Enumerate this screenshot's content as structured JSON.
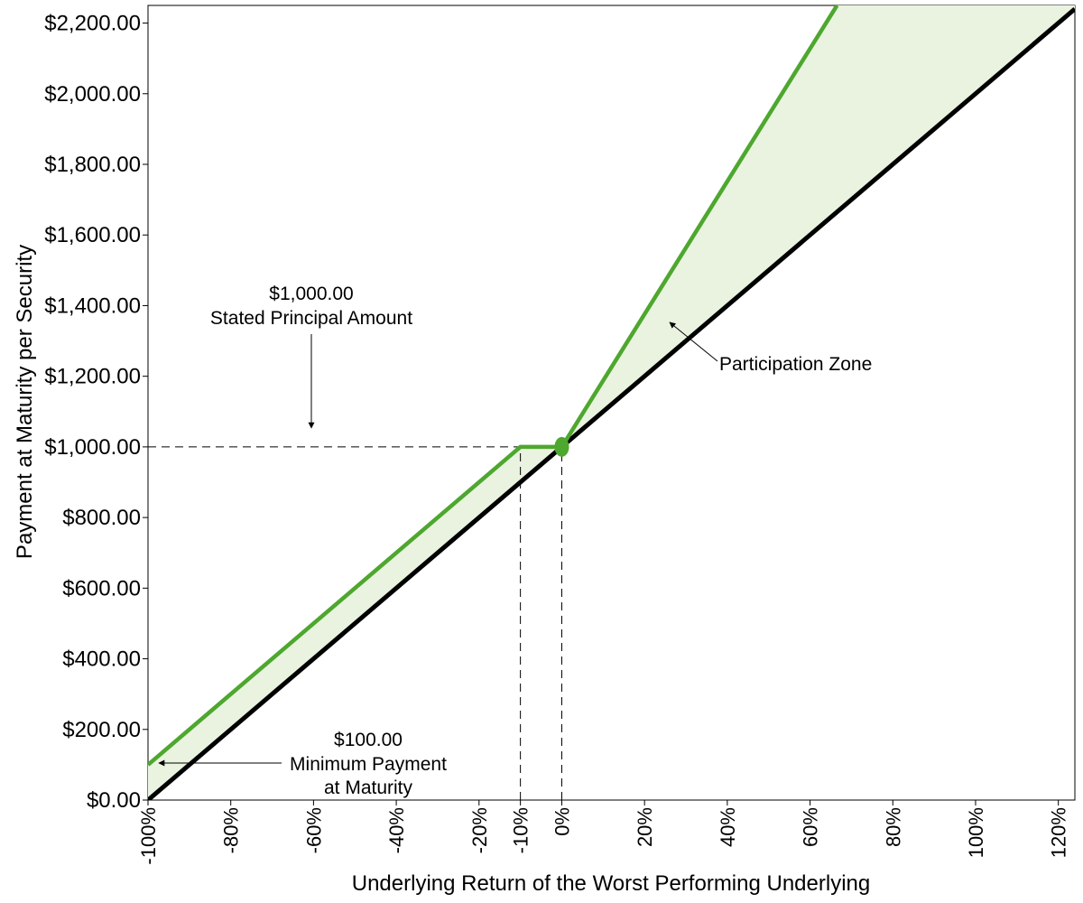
{
  "chart_data": {
    "type": "line",
    "title": "",
    "xlabel": "Underlying Return of the Worst Performing Underlying",
    "ylabel": "Payment at Maturity per Security",
    "xlim": [
      -100,
      124
    ],
    "ylim": [
      0,
      2250
    ],
    "x_ticks": [
      -100,
      -80,
      -60,
      -40,
      -20,
      -10,
      0,
      20,
      40,
      60,
      80,
      100,
      120
    ],
    "x_tick_labels": [
      "-100%",
      "-80%",
      "-60%",
      "-40%",
      "-20%",
      "-10%",
      "0%",
      "20%",
      "40%",
      "60%",
      "80%",
      "100%",
      "120%"
    ],
    "y_ticks": [
      0,
      200,
      400,
      600,
      800,
      1000,
      1200,
      1400,
      1600,
      1800,
      2000,
      2200
    ],
    "y_tick_labels": [
      "$0.00",
      "$200.00",
      "$400.00",
      "$600.00",
      "$800.00",
      "$1,000.00",
      "$1,200.00",
      "$1,400.00",
      "$1,600.00",
      "$1,800.00",
      "$2,000.00",
      "$2,200.00"
    ],
    "grid": false,
    "series": [
      {
        "color": "#000000",
        "points": [
          [
            -100,
            0
          ],
          [
            124,
            2240
          ]
        ]
      },
      {
        "color": "#4ea72e",
        "points": [
          [
            -100,
            100
          ],
          [
            -10,
            1000
          ],
          [
            0,
            1000
          ],
          [
            66.5,
            2250
          ]
        ]
      }
    ],
    "shaded_region_color": "#e9f3e0",
    "marker": {
      "x": 0,
      "y": 1000,
      "color": "#4ea72e"
    },
    "reference_lines": [
      {
        "orientation": "horizontal",
        "y": 1000,
        "from_x": -100,
        "to_x": -10
      },
      {
        "orientation": "vertical",
        "x": -10,
        "from_y": 0,
        "to_y": 1000
      },
      {
        "orientation": "vertical",
        "x": 0,
        "from_y": 0,
        "to_y": 1000
      }
    ],
    "annotations": [
      {
        "lines": [
          "$1,000.00",
          "Stated Principal Amount"
        ]
      },
      {
        "lines": [
          "Participation Zone"
        ]
      },
      {
        "lines": [
          "$100.00",
          "Minimum Payment",
          "at Maturity"
        ]
      }
    ]
  }
}
